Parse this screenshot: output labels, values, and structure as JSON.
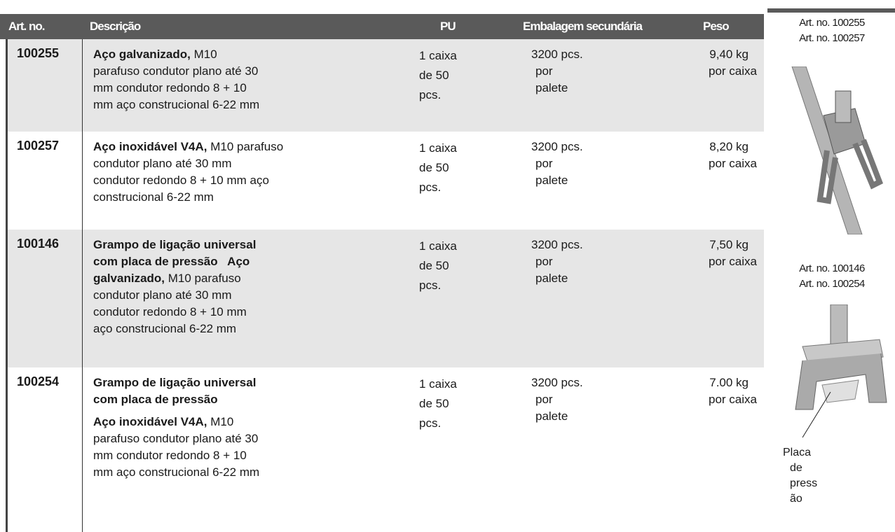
{
  "header": {
    "art_no": "Art. no.",
    "description": "Descrição",
    "pu": "PU",
    "packaging": "Embalagem secundária",
    "weight": "Peso"
  },
  "rows": [
    {
      "art_no": "100255",
      "description": [
        [
          {
            "text": "Aço galvanizado,",
            "bold": true
          },
          {
            "text": " M10",
            "bold": false
          }
        ],
        [
          {
            "text": "parafuso condutor plano até 30",
            "bold": false
          }
        ],
        [
          {
            "text": "mm condutor redondo 8 + 10",
            "bold": false
          }
        ],
        [
          {
            "text": "mm aço construcional 6-22 mm",
            "bold": false
          }
        ]
      ],
      "pu": [
        "1 caixa",
        "de 50",
        "pcs."
      ],
      "packaging": [
        "3200 pcs.",
        "por",
        "palete"
      ],
      "weight": [
        "9,40 kg",
        "por caixa"
      ]
    },
    {
      "art_no": "100257",
      "description": [
        [
          {
            "text": "Aço inoxidável V4A,",
            "bold": true
          },
          {
            "text": " M10 parafuso",
            "bold": false
          }
        ],
        [
          {
            "text": "condutor plano até 30 mm",
            "bold": false
          }
        ],
        [
          {
            "text": "condutor redondo 8 + 10 mm aço",
            "bold": false
          }
        ],
        [
          {
            "text": "construcional 6-22 mm",
            "bold": false
          }
        ]
      ],
      "pu": [
        "1 caixa",
        "de 50",
        "pcs."
      ],
      "packaging": [
        "3200 pcs.",
        "por",
        "palete"
      ],
      "weight": [
        "8,20 kg",
        "por caixa"
      ]
    },
    {
      "art_no": "100146",
      "description": [
        [
          {
            "text": "Grampo de ligação universal",
            "bold": true
          }
        ],
        [
          {
            "text": "com placa de pressão   Aço",
            "bold": true
          }
        ],
        [
          {
            "text": "galvanizado,",
            "bold": true
          },
          {
            "text": " M10 parafuso",
            "bold": false
          }
        ],
        [
          {
            "text": "condutor plano até 30 mm",
            "bold": false
          }
        ],
        [
          {
            "text": "condutor redondo 8 + 10 mm",
            "bold": false
          }
        ],
        [
          {
            "text": "aço construcional 6-22 mm",
            "bold": false
          }
        ]
      ],
      "pu": [
        "1 caixa",
        "de 50",
        "pcs."
      ],
      "packaging": [
        "3200 pcs.",
        "por",
        "palete"
      ],
      "weight": [
        "7,50 kg",
        "por caixa"
      ]
    },
    {
      "art_no": "100254",
      "description": [
        [
          {
            "text": "Grampo de ligação universal",
            "bold": true
          }
        ],
        [
          {
            "text": "com placa de pressão",
            "bold": true
          }
        ],
        [
          {
            "text": "Aço inoxidável V4A,",
            "bold": true
          },
          {
            "text": " M10",
            "bold": false
          }
        ],
        [
          {
            "text": "parafuso condutor plano até 30",
            "bold": false
          }
        ],
        [
          {
            "text": "mm condutor redondo 8 + 10",
            "bold": false
          }
        ],
        [
          {
            "text": "mm aço construcional 6-22 mm",
            "bold": false
          }
        ]
      ],
      "pu": [
        "1 caixa",
        "de 50",
        "pcs."
      ],
      "packaging": [
        "3200 pcs.",
        "por",
        "palete"
      ],
      "weight": [
        "7.00 kg",
        "por caixa"
      ]
    }
  ],
  "sidebar": {
    "group1": [
      "Art. no. 100255",
      "Art. no. 100257"
    ],
    "group2": [
      "Art. no. 100146",
      "Art. no. 100254"
    ],
    "callout": [
      "Placa",
      "de",
      "press",
      "ão"
    ]
  }
}
